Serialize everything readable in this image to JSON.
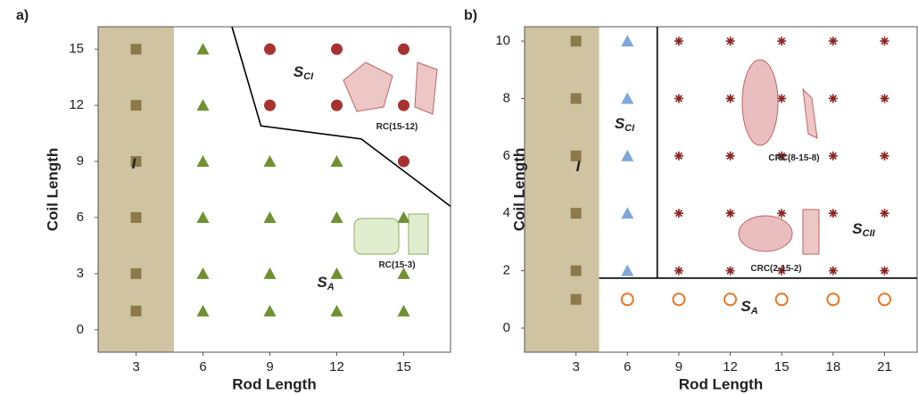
{
  "chart_data": [
    {
      "type": "scatter",
      "label": "a)",
      "x_label": "Rod Length",
      "y_label": "Coil Length",
      "xlim": [
        1.3,
        17.1
      ],
      "ylim": [
        -1.2,
        16.2
      ],
      "xticks": [
        3,
        6,
        9,
        12,
        15
      ],
      "yticks": [
        0,
        3,
        6,
        9,
        12,
        15
      ],
      "shaded_region": {
        "x": [
          1.3,
          4.7
        ],
        "color": "#cfc3a2"
      },
      "boundaries": [
        {
          "x": [
            7.3,
            8.6,
            13.1,
            17.1
          ],
          "y": [
            16.2,
            10.9,
            10.2,
            6.6
          ]
        }
      ],
      "series": [
        {
          "marker": "square",
          "color": "#8c7a4b",
          "x": [
            3,
            3,
            3,
            3,
            3,
            3
          ],
          "values": [
            1,
            3,
            6,
            9,
            12,
            15
          ]
        },
        {
          "marker": "triangle",
          "color": "#6f9132",
          "x": [
            6,
            6,
            6,
            6,
            6,
            6,
            9,
            9,
            9,
            9,
            12,
            12,
            12,
            12,
            15,
            15,
            15
          ],
          "values": [
            1,
            3,
            6,
            9,
            12,
            15,
            1,
            3,
            6,
            9,
            1,
            3,
            6,
            9,
            1,
            3,
            6
          ]
        },
        {
          "marker": "circle",
          "color": "#a83232",
          "x": [
            9,
            9,
            12,
            12,
            15,
            15,
            15
          ],
          "values": [
            12,
            15,
            12,
            15,
            9,
            12,
            15
          ]
        }
      ],
      "annotations": [
        {
          "text": "I"
        },
        {
          "text": "S",
          "sub": "CI"
        },
        {
          "text": "RC(15-12)"
        },
        {
          "text": "RC(15-3)"
        },
        {
          "text": "S",
          "sub": "A"
        }
      ]
    },
    {
      "type": "scatter",
      "label": "b)",
      "x_label": "Rod Length",
      "y_label": "Coil Length",
      "xlim": [
        0,
        22.9
      ],
      "ylim": [
        -0.84,
        10.5
      ],
      "xticks": [
        3,
        6,
        9,
        12,
        15,
        18,
        21
      ],
      "yticks": [
        0,
        2,
        4,
        6,
        8,
        10
      ],
      "shaded_region": {
        "x": [
          0,
          4.35
        ],
        "color": "#cfc3a2"
      },
      "boundaries": [
        {
          "x": [
            4.35,
            22.9
          ],
          "y": [
            1.74,
            1.74
          ]
        },
        {
          "x": [
            7.74,
            7.74
          ],
          "y": [
            1.74,
            10.5
          ]
        }
      ],
      "series": [
        {
          "marker": "square",
          "color": "#8c7a4b",
          "x": [
            3,
            3,
            3,
            3,
            3,
            3
          ],
          "values": [
            1,
            2,
            4,
            6,
            8,
            10
          ]
        },
        {
          "marker": "triangle",
          "color": "#7fa7d9",
          "x": [
            6,
            6,
            6,
            6,
            6
          ],
          "values": [
            2,
            4,
            6,
            8,
            10
          ]
        },
        {
          "marker": "star",
          "color": "#8b2323",
          "x": [
            9,
            9,
            9,
            9,
            9,
            12,
            12,
            12,
            12,
            12,
            15,
            15,
            15,
            15,
            15,
            18,
            18,
            18,
            18,
            18,
            21,
            21,
            21,
            21,
            21
          ],
          "values": [
            2,
            4,
            6,
            8,
            10,
            2,
            4,
            6,
            8,
            10,
            2,
            4,
            6,
            8,
            10,
            2,
            4,
            6,
            8,
            10,
            2,
            4,
            6,
            8,
            10
          ]
        },
        {
          "marker": "open-circle",
          "color": "#e87722",
          "x": [
            6,
            9,
            12,
            15,
            18,
            21
          ],
          "values": [
            1,
            1,
            1,
            1,
            1,
            1
          ]
        }
      ],
      "annotations": [
        {
          "text": "I"
        },
        {
          "text": "S",
          "sub": "CI"
        },
        {
          "text": "CRC(8-15-8)"
        },
        {
          "text": "CRC(2-15-2)"
        },
        {
          "text": "S",
          "sub": "CII"
        },
        {
          "text": "S",
          "sub": "A"
        }
      ]
    }
  ]
}
